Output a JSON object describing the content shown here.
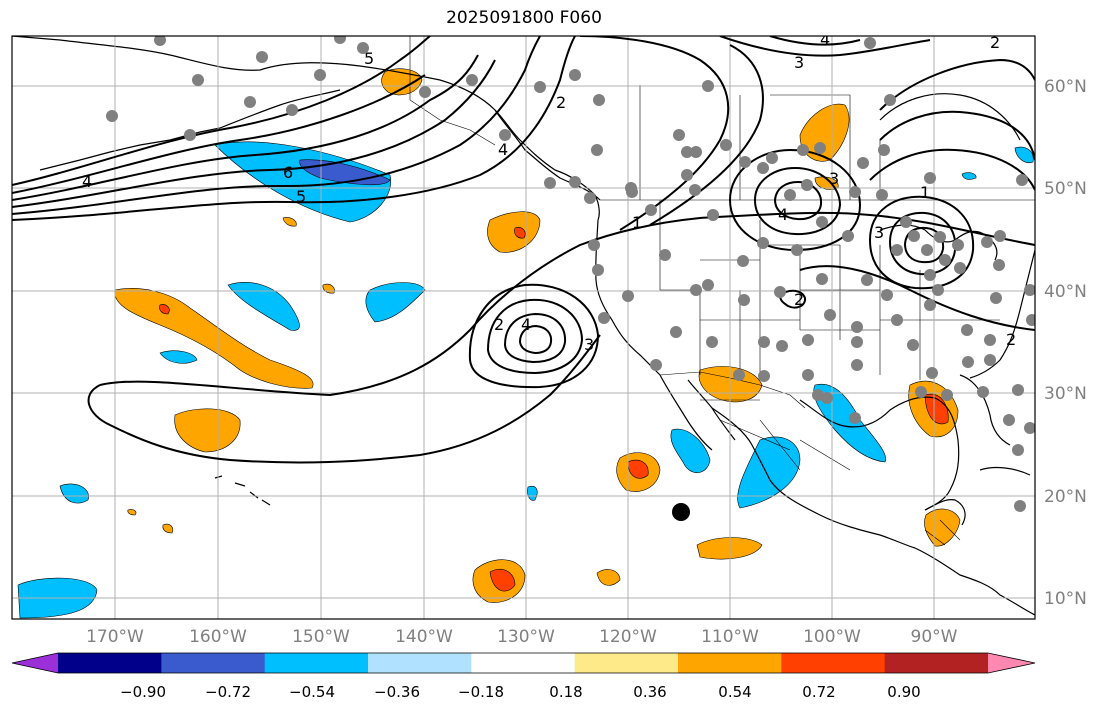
{
  "title": "2025091800 F060",
  "map": {
    "lon_range": [
      -180,
      -80
    ],
    "lat_range": [
      8,
      65
    ],
    "grid": true,
    "lon_labels": [
      "170°W",
      "160°W",
      "150°W",
      "140°W",
      "130°W",
      "120°W",
      "110°W",
      "100°W",
      "90°W"
    ],
    "lat_labels": [
      "10°N",
      "20°N",
      "30°N",
      "40°N",
      "50°N",
      "60°N"
    ]
  },
  "colorbar": {
    "ticks": [
      "−0.90",
      "−0.72",
      "−0.54",
      "−0.36",
      "−0.18",
      "0.18",
      "0.36",
      "0.54",
      "0.72",
      "0.90"
    ],
    "colors": [
      "#9b30d8",
      "#00008b",
      "#3a5bcd",
      "#00bfff",
      "#b0e2ff",
      "#ffffff",
      "#ffea8a",
      "#ffa500",
      "#ff4000",
      "#b22222",
      "#ff88b0"
    ]
  },
  "contour_labels": [
    "5",
    "4",
    "6",
    "5",
    "3",
    "2",
    "4",
    "1",
    "2",
    "4",
    "3",
    "2",
    "3",
    "4",
    "1",
    "2",
    "4",
    "3",
    "2"
  ],
  "colors": {
    "station": "#808080",
    "marker": "#000000",
    "contour": "#000000"
  }
}
